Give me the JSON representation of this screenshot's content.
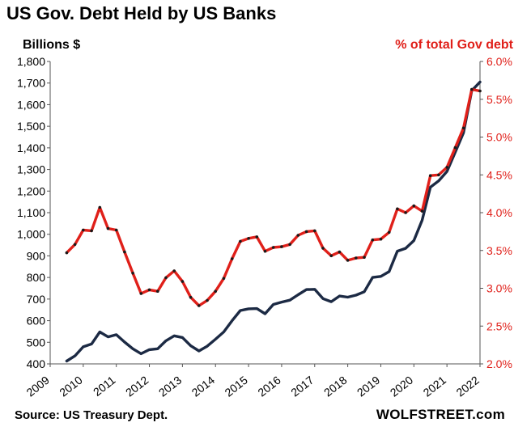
{
  "header": {
    "title": "US Gov. Debt Held by US Banks",
    "left_unit": "Billions  $",
    "right_unit": "% of total Gov debt"
  },
  "footer": {
    "source": "Source: US Treasury Dept.",
    "brand": "WOLFSTREET.com"
  },
  "colors": {
    "billions_line": "#1c2a44",
    "percent_line": "#e0201a",
    "percent_marker": "#1a1a1a",
    "right_axis_text": "#e0201a"
  },
  "chart_data": {
    "type": "line",
    "grid": false,
    "legend": "none",
    "x_ticks": [
      "2009",
      "2010",
      "2011",
      "2012",
      "2013",
      "2014",
      "2015",
      "2016",
      "2017",
      "2018",
      "2019",
      "2020",
      "2021",
      "2022"
    ],
    "xlim": [
      2009,
      2022
    ],
    "left_axis": {
      "ylim": [
        400,
        1800
      ],
      "ticks": [
        "400",
        "500",
        "600",
        "700",
        "800",
        "900",
        "1,000",
        "1,100",
        "1,200",
        "1,300",
        "1,400",
        "1,500",
        "1,600",
        "1,700",
        "1,800"
      ]
    },
    "right_axis": {
      "ylim": [
        2.0,
        6.0
      ],
      "ticks": [
        "2.0%",
        "2.5%",
        "3.0%",
        "3.5%",
        "4.0%",
        "4.5%",
        "5.0%",
        "5.5%",
        "6.0%"
      ]
    },
    "series": [
      {
        "axis": "left",
        "x": [
          2009.5,
          2009.75,
          2010.0,
          2010.25,
          2010.5,
          2010.75,
          2011.0,
          2011.25,
          2011.5,
          2011.75,
          2012.0,
          2012.25,
          2012.5,
          2012.75,
          2013.0,
          2013.25,
          2013.5,
          2013.75,
          2014.0,
          2014.25,
          2014.5,
          2014.75,
          2015.0,
          2015.25,
          2015.5,
          2015.75,
          2016.0,
          2016.25,
          2016.5,
          2016.75,
          2017.0,
          2017.25,
          2017.5,
          2017.75,
          2018.0,
          2018.25,
          2018.5,
          2018.75,
          2019.0,
          2019.25,
          2019.5,
          2019.75,
          2020.0,
          2020.25,
          2020.5,
          2020.75,
          2021.0,
          2021.25,
          2021.5,
          2021.75,
          2022.0
        ],
        "values": [
          413,
          437,
          479,
          492,
          548,
          525,
          535,
          501,
          470,
          447,
          466,
          470,
          507,
          530,
          522,
          484,
          460,
          482,
          514,
          548,
          600,
          647,
          655,
          656,
          632,
          675,
          686,
          695,
          720,
          744,
          745,
          702,
          688,
          714,
          709,
          718,
          734,
          800,
          805,
          827,
          922,
          935,
          971,
          1065,
          1218,
          1247,
          1291,
          1380,
          1470,
          1665,
          1705
        ]
      },
      {
        "axis": "right",
        "x": [
          2009.5,
          2009.75,
          2010.0,
          2010.25,
          2010.5,
          2010.75,
          2011.0,
          2011.25,
          2011.5,
          2011.75,
          2012.0,
          2012.25,
          2012.5,
          2012.75,
          2013.0,
          2013.25,
          2013.5,
          2013.75,
          2014.0,
          2014.25,
          2014.5,
          2014.75,
          2015.0,
          2015.25,
          2015.5,
          2015.75,
          2016.0,
          2016.25,
          2016.5,
          2016.75,
          2017.0,
          2017.25,
          2017.5,
          2017.75,
          2018.0,
          2018.25,
          2018.5,
          2018.75,
          2019.0,
          2019.25,
          2019.5,
          2019.75,
          2020.0,
          2020.25,
          2020.5,
          2020.75,
          2021.0,
          2021.25,
          2021.5,
          2021.75,
          2022.0
        ],
        "values": [
          3.47,
          3.58,
          3.77,
          3.76,
          4.07,
          3.79,
          3.77,
          3.48,
          3.2,
          2.93,
          2.98,
          2.96,
          3.14,
          3.23,
          3.09,
          2.88,
          2.77,
          2.84,
          2.96,
          3.13,
          3.39,
          3.62,
          3.66,
          3.68,
          3.49,
          3.54,
          3.55,
          3.58,
          3.7,
          3.75,
          3.76,
          3.53,
          3.43,
          3.48,
          3.37,
          3.4,
          3.41,
          3.64,
          3.65,
          3.74,
          4.05,
          4.0,
          4.09,
          4.02,
          4.49,
          4.5,
          4.6,
          4.86,
          5.12,
          5.63,
          5.61
        ]
      }
    ]
  }
}
